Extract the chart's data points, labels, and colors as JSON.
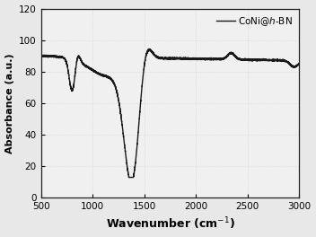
{
  "xlabel": "Wavenumber (cm$^{-1}$)",
  "ylabel": "Absorbance (a.u.)",
  "xlim": [
    500,
    3000
  ],
  "ylim": [
    0,
    120
  ],
  "xticks": [
    500,
    1000,
    1500,
    2000,
    2500,
    3000
  ],
  "yticks": [
    0,
    20,
    40,
    60,
    80,
    100,
    120
  ],
  "line_color": "#1a1a1a",
  "line_width": 1.0,
  "legend_label": "CoNi@$h$-BN",
  "background_color": "#e8e8e8",
  "plot_bg_color": "#f0f0f0"
}
